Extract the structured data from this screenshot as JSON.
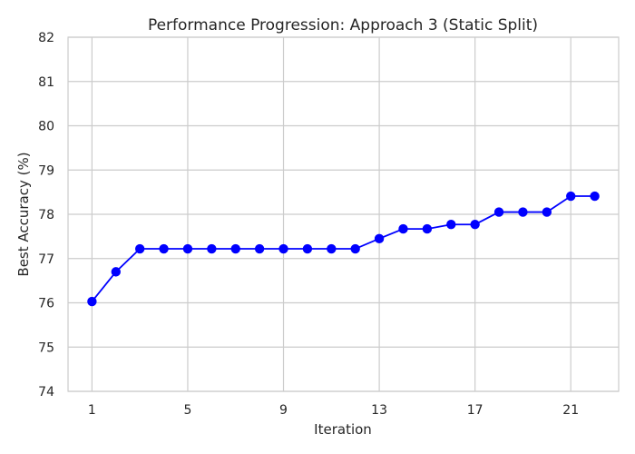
{
  "chart_data": {
    "type": "line",
    "title": "Performance Progression: Approach 3 (Static Split)",
    "xlabel": "Iteration",
    "ylabel": "Best Accuracy (%)",
    "xlim": [
      0,
      23
    ],
    "ylim": [
      74,
      82
    ],
    "xticks": [
      1,
      5,
      9,
      13,
      17,
      21
    ],
    "yticks": [
      74,
      75,
      76,
      77,
      78,
      79,
      80,
      81,
      82
    ],
    "grid": true,
    "series": [
      {
        "color": "#0000ff",
        "marker": "circle",
        "x": [
          1,
          2,
          3,
          4,
          5,
          6,
          7,
          8,
          9,
          10,
          11,
          12,
          13,
          14,
          15,
          16,
          17,
          18,
          19,
          20,
          21,
          22
        ],
        "y": [
          76.03,
          76.7,
          77.22,
          77.22,
          77.22,
          77.22,
          77.22,
          77.22,
          77.22,
          77.22,
          77.22,
          77.22,
          77.45,
          77.67,
          77.67,
          77.77,
          77.77,
          78.05,
          78.05,
          78.05,
          78.41,
          78.41
        ]
      }
    ]
  }
}
